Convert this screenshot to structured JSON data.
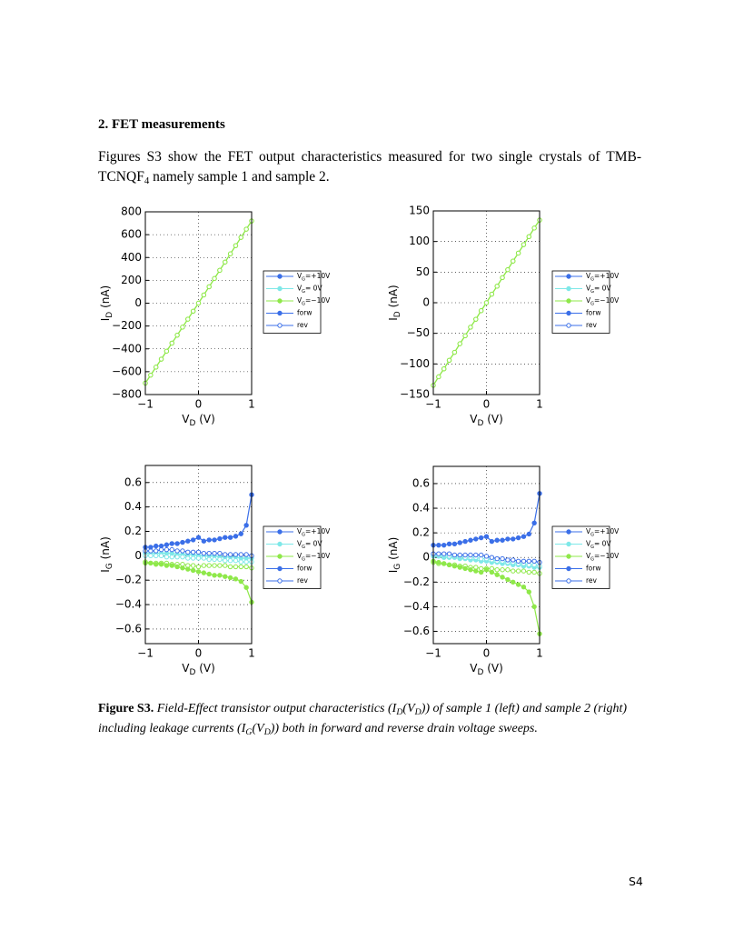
{
  "heading": "2. FET measurements",
  "paragraph": [
    "Figures S3 show the FET output characteristics measured for two single crystals of TMB-TCNQF",
    "4",
    " namely sample 1 and sample 2."
  ],
  "caption": {
    "label": "Figure S3.",
    "parts": [
      " Field-Effect transistor output characteristics (I",
      "D",
      "(V",
      "D",
      ")) of sample 1 (left) and sample 2 (right)",
      "including leakage currents (I",
      "G",
      "(V",
      "D",
      ")) both in forward and reverse drain voltage sweeps."
    ]
  },
  "page_number": "S4",
  "chart_data": [
    {
      "type": "line",
      "ylabel": [
        "I",
        "D",
        " (nA)"
      ],
      "xlabel": [
        "V",
        "D",
        " (V)"
      ],
      "x": [
        -1,
        -0.9,
        -0.8,
        -0.7,
        -0.6,
        -0.5,
        -0.4,
        -0.3,
        -0.2,
        -0.1,
        0,
        0.1,
        0.2,
        0.3,
        0.4,
        0.5,
        0.6,
        0.7,
        0.8,
        0.9,
        1
      ],
      "xlim": [
        -1,
        1
      ],
      "xticks": [
        {
          "value": -1,
          "label": "−1"
        },
        0,
        1
      ],
      "ylim": [
        -800,
        800
      ],
      "yticks": [
        {
          "value": -800,
          "label": "−800"
        },
        {
          "value": -600,
          "label": "−600"
        },
        {
          "value": -400,
          "label": "−400"
        },
        {
          "value": -200,
          "label": "−200"
        },
        0,
        200,
        400,
        600,
        800
      ],
      "grid": true,
      "legend": [
        {
          "parts": [
            "V",
            "G",
            "=+10V"
          ],
          "color": "#3b6fe8",
          "marker": "filled"
        },
        {
          "parts": [
            "V",
            "G",
            "= 0V"
          ],
          "color": "#7fe8e8",
          "marker": "filled"
        },
        {
          "parts": [
            "V",
            "G",
            "=−10V"
          ],
          "color": "#8fe84a",
          "marker": "filled"
        },
        {
          "parts": [
            "forw"
          ],
          "color": "#3b6fe8",
          "marker": "filled"
        },
        {
          "parts": [
            "rev"
          ],
          "color": "#3b6fe8",
          "marker": "open"
        }
      ],
      "series": [
        {
          "color": "#8fe84a",
          "marker": "filled",
          "values": [
            -700,
            -630,
            -560,
            -490,
            -420,
            -350,
            -280,
            -210,
            -140,
            -70,
            0,
            72,
            144,
            216,
            288,
            360,
            432,
            504,
            576,
            648,
            720
          ]
        },
        {
          "color": "#8fe84a",
          "marker": "open",
          "values": [
            -700,
            -630,
            -560,
            -490,
            -420,
            -350,
            -280,
            -210,
            -140,
            -70,
            0,
            72,
            144,
            216,
            288,
            360,
            432,
            504,
            576,
            648,
            720
          ]
        }
      ]
    },
    {
      "type": "line",
      "ylabel": [
        "I",
        "D",
        " (nA)"
      ],
      "xlabel": [
        "V",
        "D",
        " (V)"
      ],
      "x": [
        -1,
        -0.9,
        -0.8,
        -0.7,
        -0.6,
        -0.5,
        -0.4,
        -0.3,
        -0.2,
        -0.1,
        0,
        0.1,
        0.2,
        0.3,
        0.4,
        0.5,
        0.6,
        0.7,
        0.8,
        0.9,
        1
      ],
      "xlim": [
        -1,
        1
      ],
      "xticks": [
        {
          "value": -1,
          "label": "−1"
        },
        0,
        1
      ],
      "ylim": [
        -150,
        150
      ],
      "yticks": [
        {
          "value": -150,
          "label": "−150"
        },
        {
          "value": -100,
          "label": "−100"
        },
        {
          "value": -50,
          "label": "−50"
        },
        0,
        50,
        100,
        150
      ],
      "grid": true,
      "legend": [
        {
          "parts": [
            "V",
            "G",
            "=+10V"
          ],
          "color": "#3b6fe8",
          "marker": "filled"
        },
        {
          "parts": [
            "V",
            "G",
            "= 0V"
          ],
          "color": "#7fe8e8",
          "marker": "filled"
        },
        {
          "parts": [
            "V",
            "G",
            "=−10V"
          ],
          "color": "#8fe84a",
          "marker": "filled"
        },
        {
          "parts": [
            "forw"
          ],
          "color": "#3b6fe8",
          "marker": "filled"
        },
        {
          "parts": [
            "rev"
          ],
          "color": "#3b6fe8",
          "marker": "open"
        }
      ],
      "series": [
        {
          "color": "#8fe84a",
          "marker": "filled",
          "values": [
            -135,
            -121,
            -108,
            -94,
            -81,
            -67,
            -54,
            -40,
            -27,
            -13,
            0,
            14,
            27,
            41,
            54,
            68,
            81,
            95,
            108,
            122,
            135
          ]
        },
        {
          "color": "#8fe84a",
          "marker": "open",
          "values": [
            -135,
            -121,
            -108,
            -94,
            -81,
            -67,
            -54,
            -40,
            -27,
            -13,
            0,
            14,
            27,
            41,
            54,
            68,
            81,
            95,
            108,
            122,
            135
          ]
        }
      ]
    },
    {
      "type": "line",
      "ylabel": [
        "I",
        "G",
        " (nA)"
      ],
      "xlabel": [
        "V",
        "D",
        " (V)"
      ],
      "x": [
        -1,
        -0.9,
        -0.8,
        -0.7,
        -0.6,
        -0.5,
        -0.4,
        -0.3,
        -0.2,
        -0.1,
        0,
        0.1,
        0.2,
        0.3,
        0.4,
        0.5,
        0.6,
        0.7,
        0.8,
        0.9,
        1
      ],
      "xlim": [
        -1,
        1
      ],
      "xticks": [
        {
          "value": -1,
          "label": "−1"
        },
        0,
        1
      ],
      "ylim": [
        -0.72,
        0.74
      ],
      "yticks": [
        {
          "value": -0.6,
          "label": "−0.6"
        },
        {
          "value": -0.4,
          "label": "−0.4"
        },
        {
          "value": -0.2,
          "label": "−0.2"
        },
        0,
        0.2,
        0.4,
        0.6
      ],
      "grid": true,
      "legend": [
        {
          "parts": [
            "V",
            "G",
            "=+10V"
          ],
          "color": "#3b6fe8",
          "marker": "filled"
        },
        {
          "parts": [
            "V",
            "G",
            "= 0V"
          ],
          "color": "#7fe8e8",
          "marker": "filled"
        },
        {
          "parts": [
            "V",
            "G",
            "=−10V"
          ],
          "color": "#8fe84a",
          "marker": "filled"
        },
        {
          "parts": [
            "forw"
          ],
          "color": "#3b6fe8",
          "marker": "filled"
        },
        {
          "parts": [
            "rev"
          ],
          "color": "#3b6fe8",
          "marker": "open"
        }
      ],
      "series": [
        {
          "color": "#7fe8e8",
          "marker": "filled",
          "values": [
            0.02,
            0.02,
            0.02,
            0.02,
            0.02,
            0.02,
            0.01,
            0.01,
            0.01,
            0.01,
            0,
            0,
            0,
            0,
            -0.01,
            -0.01,
            -0.01,
            -0.01,
            -0.02,
            -0.02,
            -0.02
          ]
        },
        {
          "color": "#7fe8e8",
          "marker": "open",
          "values": [
            0,
            0,
            0,
            0,
            -0.01,
            -0.01,
            -0.01,
            -0.01,
            -0.02,
            -0.02,
            -0.02,
            -0.02,
            -0.03,
            -0.03,
            -0.03,
            -0.04,
            -0.04,
            -0.04,
            -0.05,
            -0.05,
            -0.05
          ]
        },
        {
          "color": "#8fe84a",
          "marker": "open",
          "values": [
            -0.05,
            -0.06,
            -0.06,
            -0.06,
            -0.06,
            -0.07,
            -0.07,
            -0.07,
            -0.08,
            -0.08,
            -0.09,
            -0.08,
            -0.08,
            -0.08,
            -0.08,
            -0.08,
            -0.09,
            -0.09,
            -0.09,
            -0.09,
            -0.1
          ]
        },
        {
          "color": "#8fe84a",
          "marker": "filled",
          "values": [
            -0.06,
            -0.06,
            -0.07,
            -0.07,
            -0.08,
            -0.08,
            -0.09,
            -0.1,
            -0.11,
            -0.12,
            -0.13,
            -0.14,
            -0.15,
            -0.16,
            -0.16,
            -0.17,
            -0.18,
            -0.19,
            -0.21,
            -0.26,
            -0.38
          ]
        },
        {
          "color": "#3b6fe8",
          "marker": "open",
          "values": [
            0.04,
            0.04,
            0.04,
            0.05,
            0.05,
            0.05,
            0.04,
            0.04,
            0.03,
            0.03,
            0.03,
            0.02,
            0.02,
            0.02,
            0.02,
            0.01,
            0.01,
            0.01,
            0.01,
            0.01,
            0
          ]
        },
        {
          "color": "#3b6fe8",
          "marker": "filled",
          "values": [
            0.07,
            0.07,
            0.08,
            0.08,
            0.09,
            0.1,
            0.1,
            0.11,
            0.12,
            0.13,
            0.15,
            0.12,
            0.13,
            0.13,
            0.14,
            0.15,
            0.15,
            0.16,
            0.18,
            0.25,
            0.5
          ]
        }
      ]
    },
    {
      "type": "line",
      "ylabel": [
        "I",
        "G",
        " (nA)"
      ],
      "xlabel": [
        "V",
        "D",
        " (V)"
      ],
      "x": [
        -1,
        -0.9,
        -0.8,
        -0.7,
        -0.6,
        -0.5,
        -0.4,
        -0.3,
        -0.2,
        -0.1,
        0,
        0.1,
        0.2,
        0.3,
        0.4,
        0.5,
        0.6,
        0.7,
        0.8,
        0.9,
        1
      ],
      "xlim": [
        -1,
        1
      ],
      "xticks": [
        {
          "value": -1,
          "label": "−1"
        },
        0,
        1
      ],
      "ylim": [
        -0.7,
        0.74
      ],
      "yticks": [
        {
          "value": -0.6,
          "label": "−0.6"
        },
        {
          "value": -0.4,
          "label": "−0.4"
        },
        {
          "value": -0.2,
          "label": "−0.2"
        },
        0,
        0.2,
        0.4,
        0.6
      ],
      "grid": true,
      "legend": [
        {
          "parts": [
            "V",
            "G",
            "=+10V"
          ],
          "color": "#3b6fe8",
          "marker": "filled"
        },
        {
          "parts": [
            "V",
            "G",
            "= 0V"
          ],
          "color": "#7fe8e8",
          "marker": "filled"
        },
        {
          "parts": [
            "V",
            "G",
            "=−10V"
          ],
          "color": "#8fe84a",
          "marker": "filled"
        },
        {
          "parts": [
            "forw"
          ],
          "color": "#3b6fe8",
          "marker": "filled"
        },
        {
          "parts": [
            "rev"
          ],
          "color": "#3b6fe8",
          "marker": "open"
        }
      ],
      "series": [
        {
          "color": "#7fe8e8",
          "marker": "filled",
          "values": [
            0.01,
            0.01,
            0,
            0,
            0,
            -0.01,
            -0.01,
            -0.02,
            -0.02,
            -0.03,
            -0.03,
            -0.04,
            -0.04,
            -0.05,
            -0.05,
            -0.06,
            -0.06,
            -0.07,
            -0.07,
            -0.08,
            -0.08
          ]
        },
        {
          "color": "#7fe8e8",
          "marker": "open",
          "values": [
            0.02,
            0.02,
            0.02,
            0.01,
            0.01,
            0.01,
            0,
            0,
            0,
            -0.01,
            -0.01,
            -0.02,
            -0.03,
            -0.03,
            -0.04,
            -0.04,
            -0.05,
            -0.05,
            -0.06,
            -0.06,
            -0.07
          ]
        },
        {
          "color": "#8fe84a",
          "marker": "open",
          "values": [
            -0.04,
            -0.05,
            -0.05,
            -0.06,
            -0.06,
            -0.07,
            -0.07,
            -0.08,
            -0.08,
            -0.09,
            -0.09,
            -0.09,
            -0.1,
            -0.1,
            -0.1,
            -0.11,
            -0.11,
            -0.11,
            -0.12,
            -0.12,
            -0.13
          ]
        },
        {
          "color": "#8fe84a",
          "marker": "filled",
          "values": [
            -0.03,
            -0.04,
            -0.05,
            -0.06,
            -0.07,
            -0.08,
            -0.09,
            -0.1,
            -0.11,
            -0.12,
            -0.1,
            -0.12,
            -0.14,
            -0.16,
            -0.18,
            -0.2,
            -0.22,
            -0.24,
            -0.28,
            -0.4,
            -0.62
          ]
        },
        {
          "color": "#3b6fe8",
          "marker": "open",
          "values": [
            0.03,
            0.03,
            0.03,
            0.03,
            0.02,
            0.02,
            0.02,
            0.02,
            0.02,
            0.02,
            0.01,
            0,
            -0.01,
            -0.01,
            -0.02,
            -0.02,
            -0.03,
            -0.03,
            -0.03,
            -0.03,
            -0.04
          ]
        },
        {
          "color": "#3b6fe8",
          "marker": "filled",
          "values": [
            0.1,
            0.1,
            0.1,
            0.11,
            0.11,
            0.12,
            0.13,
            0.14,
            0.15,
            0.16,
            0.17,
            0.13,
            0.14,
            0.14,
            0.15,
            0.15,
            0.16,
            0.17,
            0.19,
            0.28,
            0.52
          ]
        }
      ]
    }
  ]
}
